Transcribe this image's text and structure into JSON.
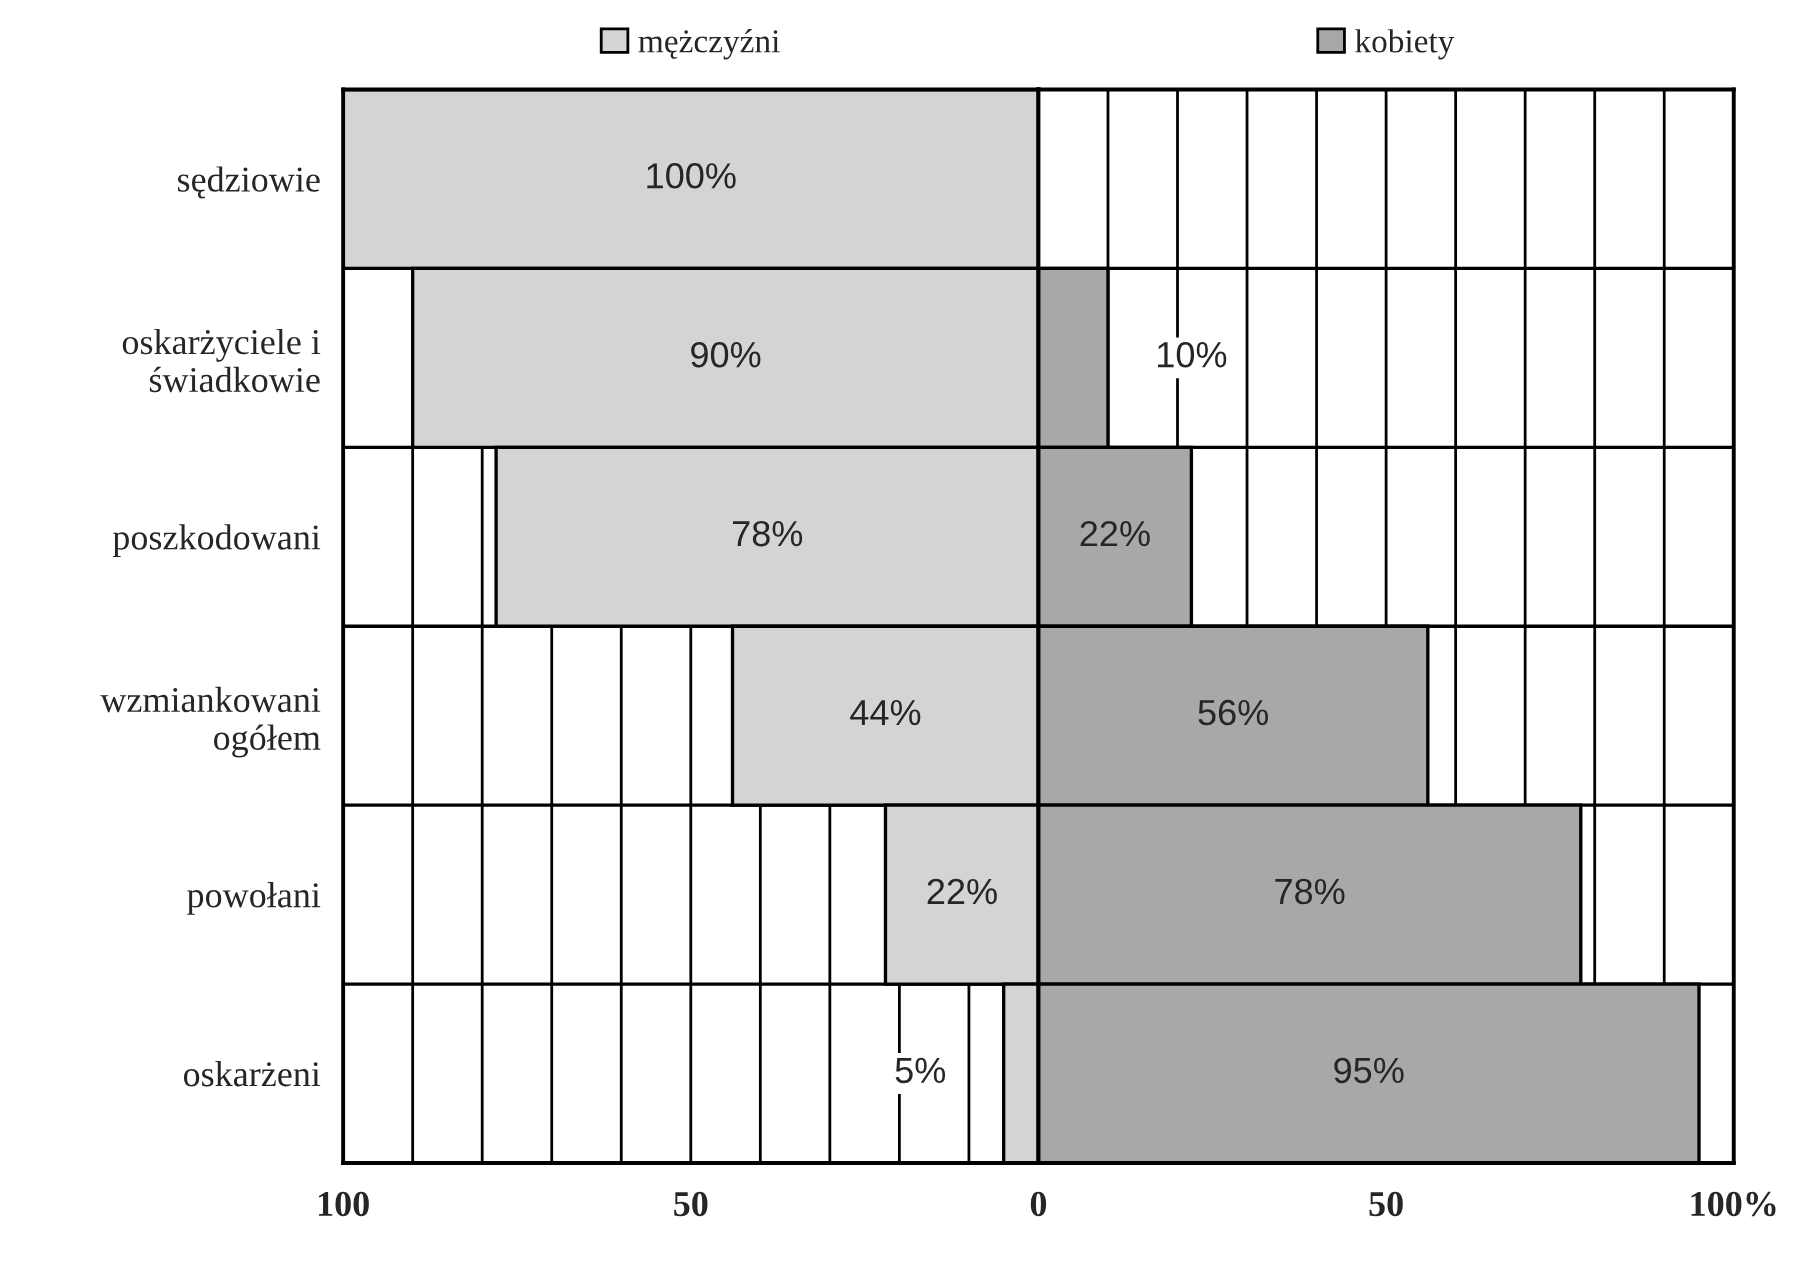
{
  "chart_data": [
    {
      "type": "bar",
      "orientation": "horizontal",
      "categories": [
        "sędziowie",
        "oskarżyciele i\nświadkowie",
        "poszkodowani",
        "wzmiankowani\nogółem",
        "powołani",
        "oskarżeni"
      ],
      "series": [
        {
          "name": "mężczyźni",
          "color": "#d4d4d4",
          "values": [
            100,
            90,
            78,
            44,
            22,
            5
          ],
          "value_labels": [
            "100%",
            "90%",
            "78%",
            "44%",
            "22%",
            "5%"
          ]
        }
      ],
      "xlim": [
        100,
        0
      ],
      "xticks": [
        100,
        {
          "value": 90,
          "label": null
        },
        {
          "value": 80,
          "label": null
        },
        {
          "value": 70,
          "label": null
        },
        {
          "value": 60,
          "label": null
        },
        50,
        {
          "value": 40,
          "label": null
        },
        {
          "value": 30,
          "label": null
        },
        {
          "value": 20,
          "label": null
        },
        {
          "value": 10,
          "label": null
        },
        0
      ],
      "grid": true,
      "legend": "top"
    },
    {
      "type": "bar",
      "orientation": "horizontal",
      "series": [
        {
          "name": "kobiety",
          "color": "#a8a8a8",
          "values": [
            0,
            10,
            22,
            56,
            78,
            95
          ],
          "value_labels": [
            null,
            "10%",
            "22%",
            "56%",
            "78%",
            "95%"
          ]
        }
      ],
      "xlim": [
        0,
        100
      ],
      "xticks": [
        {
          "value": 0,
          "label": null
        },
        {
          "value": 10,
          "label": null
        },
        {
          "value": 20,
          "label": null
        },
        {
          "value": 30,
          "label": null
        },
        {
          "value": 40,
          "label": null
        },
        50,
        {
          "value": 60,
          "label": null
        },
        {
          "value": 70,
          "label": null
        },
        {
          "value": 80,
          "label": null
        },
        {
          "value": 90,
          "label": null
        },
        {
          "value": 100,
          "label": "100%"
        }
      ],
      "grid": true,
      "legend": "top"
    }
  ]
}
